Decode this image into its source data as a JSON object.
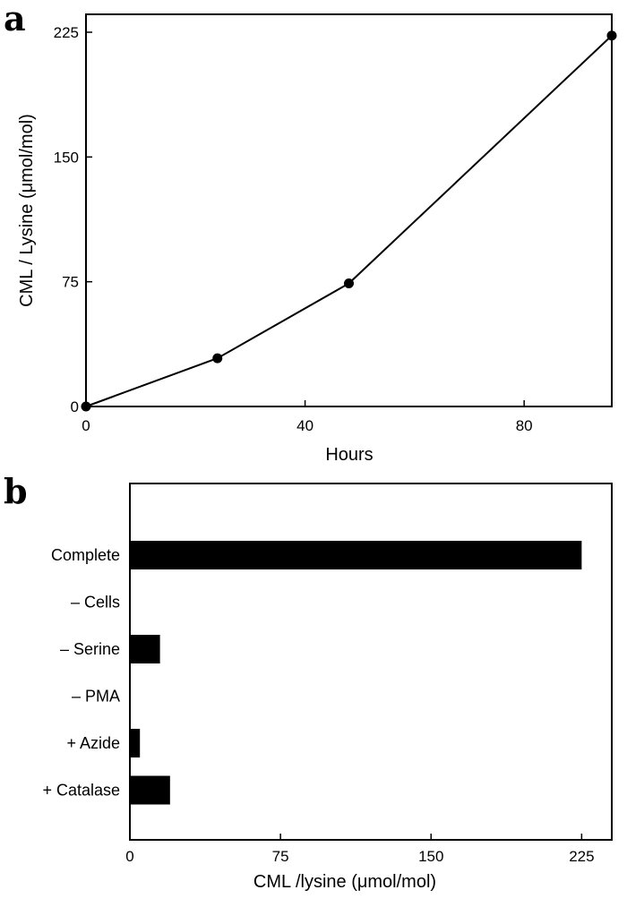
{
  "colors": {
    "ink": "#000000",
    "background": "#ffffff"
  },
  "chart_data": [
    {
      "panel": "a",
      "type": "line",
      "xlabel": "Hours",
      "ylabel": "CML / Lysine (μmol/mol)",
      "xlim": [
        0,
        96
      ],
      "ylim": [
        0,
        225
      ],
      "x_ticks": [
        0,
        40,
        80
      ],
      "y_ticks": [
        0,
        75,
        150,
        225
      ],
      "grid": false,
      "marker": "filled-circle",
      "series": [
        {
          "x": [
            0,
            24,
            48,
            96
          ],
          "y": [
            0,
            29,
            74,
            223
          ]
        }
      ]
    },
    {
      "panel": "b",
      "type": "bar",
      "orientation": "horizontal",
      "xlabel": "CML /lysine (μmol/mol)",
      "xlim": [
        0,
        240
      ],
      "x_ticks": [
        0,
        75,
        150,
        225
      ],
      "grid": false,
      "categories": [
        "Complete",
        "– Cells",
        "– Serine",
        "– PMA",
        "+ Azide",
        "+ Catalase"
      ],
      "values": [
        225,
        0,
        15,
        0,
        5,
        20
      ]
    }
  ]
}
